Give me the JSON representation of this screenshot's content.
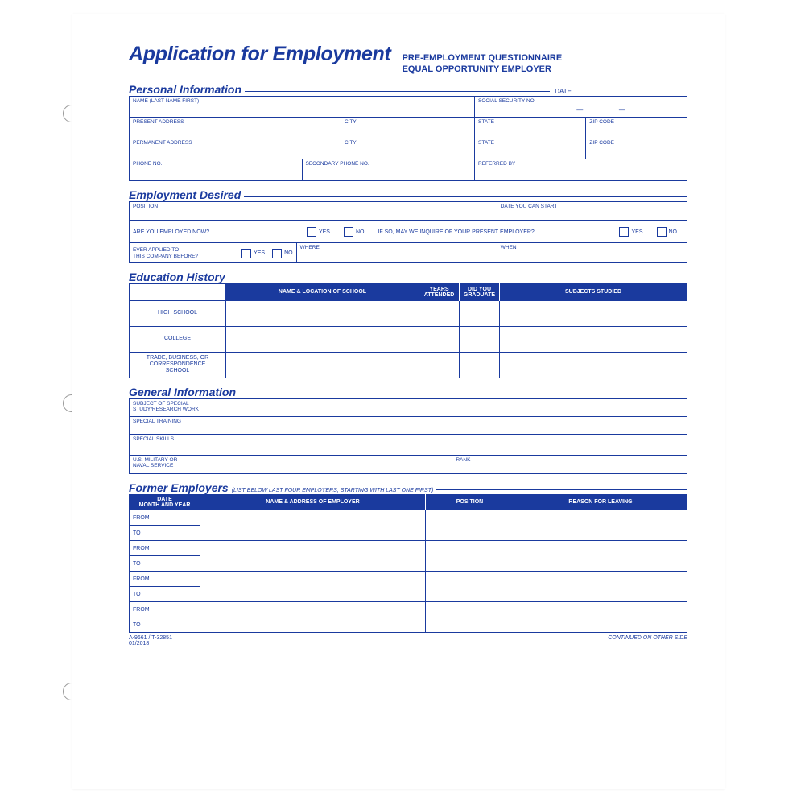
{
  "colors": {
    "primary": "#1a3a9e",
    "header_bg": "#1a3a9e",
    "header_text": "#ffffff",
    "page_bg": "#ffffff"
  },
  "header": {
    "title": "Application for Employment",
    "subtitle_line1": "PRE-EMPLOYMENT QUESTIONNAIRE",
    "subtitle_line2": "EQUAL OPPORTUNITY EMPLOYER"
  },
  "sections": {
    "personal": {
      "title": "Personal Information",
      "date_label": "DATE",
      "fields": {
        "name": "NAME (LAST NAME FIRST)",
        "ssn": "SOCIAL SECURITY NO.",
        "present_address": "PRESENT ADDRESS",
        "permanent_address": "PERMANENT ADDRESS",
        "city": "CITY",
        "state": "STATE",
        "zip": "ZIP CODE",
        "phone": "PHONE NO.",
        "secondary_phone": "SECONDARY PHONE NO.",
        "referred_by": "REFERRED BY"
      }
    },
    "employment": {
      "title": "Employment Desired",
      "fields": {
        "position": "POSITION",
        "date_start": "DATE YOU CAN START",
        "employed_now": "ARE YOU EMPLOYED NOW?",
        "inquire": "IF SO, MAY WE INQUIRE OF YOUR PRESENT EMPLOYER?",
        "applied_before": "EVER APPLIED TO\nTHIS COMPANY BEFORE?",
        "where": "WHERE",
        "when": "WHEN",
        "yes": "YES",
        "no": "NO"
      }
    },
    "education": {
      "title": "Education History",
      "columns": [
        "",
        "NAME & LOCATION OF SCHOOL",
        "YEARS\nATTENDED",
        "DID YOU\nGRADUATE",
        "SUBJECTS STUDIED"
      ],
      "rows": [
        "HIGH SCHOOL",
        "COLLEGE",
        "TRADE, BUSINESS, OR\nCORRESPONDENCE\nSCHOOL"
      ]
    },
    "general": {
      "title": "General Information",
      "fields": {
        "special_study": "SUBJECT OF SPECIAL\nSTUDY/RESEARCH WORK",
        "special_training": "SPECIAL TRAINING",
        "special_skills": "SPECIAL SKILLS",
        "military": "U.S. MILITARY OR\nNAVAL SERVICE",
        "rank": "RANK"
      }
    },
    "former": {
      "title": "Former Employers",
      "note": "(LIST BELOW LAST FOUR EMPLOYERS, STARTING WITH LAST ONE FIRST)",
      "columns": [
        "DATE\nMONTH AND YEAR",
        "NAME & ADDRESS OF EMPLOYER",
        "POSITION",
        "REASON FOR LEAVING"
      ],
      "from": "FROM",
      "to": "TO",
      "count": 4
    }
  },
  "footer": {
    "left_line1": "A-9661 / T-32851",
    "left_line2": "01/2018",
    "right": "CONTINUED ON OTHER SIDE"
  },
  "holes": [
    130,
    490,
    848
  ]
}
